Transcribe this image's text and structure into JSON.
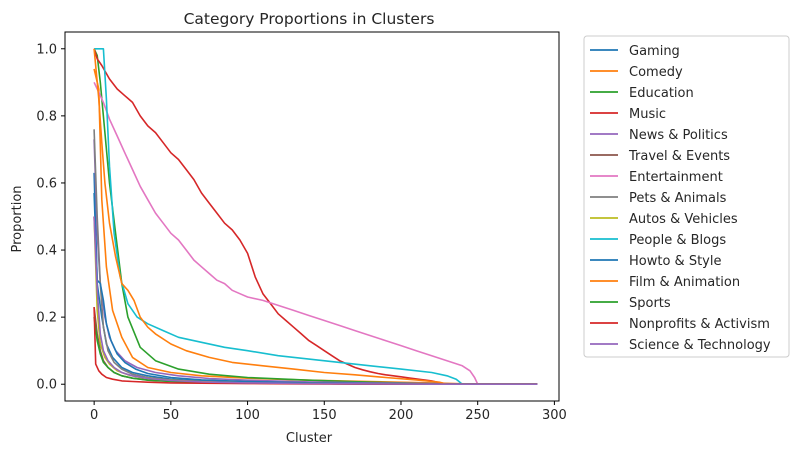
{
  "chart_data": {
    "type": "line",
    "title": "Category Proportions in Clusters",
    "xlabel": "Cluster",
    "ylabel": "Proportion",
    "xlim": [
      -19,
      303
    ],
    "ylim": [
      -0.05,
      1.05
    ],
    "xticks": [
      0,
      50,
      100,
      150,
      200,
      250,
      300
    ],
    "yticks": [
      0.0,
      0.2,
      0.4,
      0.6,
      0.8,
      1.0
    ],
    "grid": false,
    "legend_position": "outside-right",
    "series": [
      {
        "name": "Gaming",
        "color": "#1f77b4",
        "x": [
          0,
          2,
          5,
          8,
          12,
          18,
          25,
          35,
          50,
          70,
          100,
          140,
          180,
          220,
          250,
          289
        ],
        "y": [
          0.63,
          0.3,
          0.2,
          0.12,
          0.08,
          0.05,
          0.035,
          0.025,
          0.015,
          0.01,
          0.006,
          0.004,
          0.002,
          0.001,
          0.0,
          0.0
        ]
      },
      {
        "name": "Comedy",
        "color": "#ff7f0e",
        "x": [
          0,
          3,
          5,
          8,
          12,
          18,
          25,
          35,
          50,
          70,
          100,
          140,
          180,
          220,
          250,
          289
        ],
        "y": [
          0.94,
          0.88,
          0.55,
          0.35,
          0.22,
          0.14,
          0.08,
          0.05,
          0.035,
          0.025,
          0.018,
          0.012,
          0.008,
          0.004,
          0.0,
          0.0
        ]
      },
      {
        "name": "Education",
        "color": "#2ca02c",
        "x": [
          0,
          2,
          4,
          7,
          10,
          14,
          18,
          22,
          30,
          40,
          55,
          75,
          100,
          140,
          180,
          220,
          250,
          289
        ],
        "y": [
          1.0,
          0.98,
          0.9,
          0.75,
          0.6,
          0.45,
          0.3,
          0.2,
          0.11,
          0.07,
          0.045,
          0.03,
          0.02,
          0.012,
          0.006,
          0.002,
          0.0,
          0.0
        ]
      },
      {
        "name": "Music",
        "color": "#d62728",
        "x": [
          0,
          2,
          5,
          10,
          15,
          20,
          25,
          30,
          35,
          40,
          45,
          50,
          55,
          60,
          65,
          70,
          75,
          80,
          85,
          90,
          95,
          100,
          105,
          110,
          115,
          120,
          125,
          130,
          135,
          140,
          145,
          150,
          155,
          160,
          165,
          170,
          175,
          180,
          185,
          190,
          195,
          200,
          205,
          210,
          215,
          220,
          225,
          230,
          250,
          289
        ],
        "y": [
          1.0,
          0.97,
          0.95,
          0.91,
          0.88,
          0.86,
          0.84,
          0.8,
          0.77,
          0.75,
          0.72,
          0.69,
          0.67,
          0.64,
          0.61,
          0.57,
          0.54,
          0.51,
          0.48,
          0.46,
          0.43,
          0.39,
          0.32,
          0.27,
          0.24,
          0.21,
          0.19,
          0.17,
          0.15,
          0.13,
          0.115,
          0.1,
          0.085,
          0.07,
          0.06,
          0.05,
          0.043,
          0.037,
          0.032,
          0.028,
          0.025,
          0.022,
          0.019,
          0.016,
          0.013,
          0.01,
          0.005,
          0.0,
          0.0,
          0.0
        ]
      },
      {
        "name": "News & Politics",
        "color": "#9467bd",
        "x": [
          0,
          2,
          4,
          7,
          10,
          14,
          20,
          28,
          40,
          55,
          75,
          100,
          140,
          180,
          220,
          250,
          289
        ],
        "y": [
          0.73,
          0.45,
          0.3,
          0.2,
          0.14,
          0.1,
          0.07,
          0.05,
          0.035,
          0.025,
          0.017,
          0.012,
          0.007,
          0.004,
          0.002,
          0.0,
          0.0
        ]
      },
      {
        "name": "Travel & Events",
        "color": "#8c564b",
        "x": [
          0,
          2,
          4,
          6,
          9,
          13,
          18,
          25,
          35,
          50,
          70,
          100,
          140,
          180,
          220,
          250,
          289
        ],
        "y": [
          0.23,
          0.15,
          0.1,
          0.07,
          0.05,
          0.035,
          0.025,
          0.018,
          0.013,
          0.009,
          0.006,
          0.004,
          0.002,
          0.001,
          0.0,
          0.0,
          0.0
        ]
      },
      {
        "name": "Entertainment",
        "color": "#e377c2",
        "x": [
          0,
          3,
          6,
          10,
          15,
          20,
          25,
          30,
          35,
          40,
          45,
          50,
          55,
          60,
          65,
          70,
          75,
          80,
          85,
          90,
          95,
          100,
          110,
          120,
          130,
          140,
          150,
          160,
          170,
          180,
          190,
          200,
          210,
          220,
          230,
          240,
          245,
          248,
          250,
          289
        ],
        "y": [
          0.9,
          0.87,
          0.84,
          0.79,
          0.74,
          0.69,
          0.64,
          0.59,
          0.55,
          0.51,
          0.48,
          0.45,
          0.43,
          0.4,
          0.37,
          0.35,
          0.33,
          0.31,
          0.3,
          0.28,
          0.27,
          0.26,
          0.25,
          0.235,
          0.22,
          0.205,
          0.19,
          0.175,
          0.16,
          0.145,
          0.13,
          0.115,
          0.1,
          0.085,
          0.07,
          0.055,
          0.04,
          0.02,
          0.0,
          0.0
        ]
      },
      {
        "name": "Pets & Animals",
        "color": "#7f7f7f",
        "x": [
          0,
          2,
          4,
          6,
          9,
          13,
          18,
          25,
          35,
          50,
          70,
          100,
          140,
          180,
          220,
          250,
          289
        ],
        "y": [
          0.76,
          0.5,
          0.3,
          0.17,
          0.1,
          0.065,
          0.045,
          0.03,
          0.02,
          0.013,
          0.008,
          0.005,
          0.003,
          0.001,
          0.0,
          0.0,
          0.0
        ]
      },
      {
        "name": "Autos & Vehicles",
        "color": "#bcbd22",
        "x": [
          0,
          2,
          4,
          7,
          10,
          15,
          22,
          30,
          45,
          65,
          90,
          130,
          180,
          220,
          250,
          289
        ],
        "y": [
          0.5,
          0.22,
          0.12,
          0.08,
          0.06,
          0.04,
          0.028,
          0.02,
          0.013,
          0.008,
          0.005,
          0.003,
          0.001,
          0.0,
          0.0,
          0.0
        ]
      },
      {
        "name": "People & Blogs",
        "color": "#17becf",
        "x": [
          0,
          3,
          6,
          8,
          10,
          13,
          17,
          22,
          28,
          35,
          45,
          55,
          70,
          85,
          100,
          120,
          140,
          160,
          180,
          200,
          220,
          230,
          236,
          240,
          250,
          289
        ],
        "y": [
          1.0,
          1.0,
          1.0,
          0.85,
          0.65,
          0.45,
          0.32,
          0.24,
          0.2,
          0.18,
          0.16,
          0.14,
          0.125,
          0.11,
          0.1,
          0.085,
          0.075,
          0.065,
          0.055,
          0.045,
          0.035,
          0.025,
          0.015,
          0.0,
          0.0,
          0.0
        ]
      },
      {
        "name": "Howto & Style",
        "color": "#1f77b4",
        "x": [
          0,
          2,
          4,
          6,
          8,
          11,
          15,
          20,
          27,
          35,
          50,
          70,
          100,
          140,
          180,
          220,
          250,
          289
        ],
        "y": [
          0.57,
          0.31,
          0.3,
          0.25,
          0.18,
          0.13,
          0.09,
          0.065,
          0.045,
          0.032,
          0.02,
          0.013,
          0.008,
          0.004,
          0.002,
          0.0,
          0.0,
          0.0
        ]
      },
      {
        "name": "Film & Animation",
        "color": "#ff7f0e",
        "x": [
          0,
          3,
          5,
          7,
          10,
          14,
          18,
          22,
          26,
          30,
          35,
          40,
          50,
          60,
          75,
          90,
          110,
          130,
          150,
          170,
          190,
          210,
          225,
          230,
          250,
          289
        ],
        "y": [
          1.0,
          0.85,
          0.72,
          0.6,
          0.48,
          0.38,
          0.3,
          0.28,
          0.25,
          0.2,
          0.17,
          0.15,
          0.12,
          0.1,
          0.08,
          0.065,
          0.055,
          0.045,
          0.035,
          0.028,
          0.02,
          0.013,
          0.006,
          0.0,
          0.0,
          0.0
        ]
      },
      {
        "name": "Sports",
        "color": "#2ca02c",
        "x": [
          0,
          2,
          4,
          6,
          9,
          13,
          18,
          25,
          35,
          50,
          70,
          100,
          140,
          180,
          220,
          250,
          289
        ],
        "y": [
          0.2,
          0.13,
          0.09,
          0.065,
          0.05,
          0.035,
          0.025,
          0.018,
          0.012,
          0.008,
          0.005,
          0.003,
          0.002,
          0.001,
          0.0,
          0.0,
          0.0
        ]
      },
      {
        "name": "Nonprofits & Activism",
        "color": "#d62728",
        "x": [
          0,
          1,
          3,
          5,
          8,
          12,
          18,
          25,
          35,
          50,
          70,
          100,
          140,
          180,
          220,
          250,
          289
        ],
        "y": [
          0.23,
          0.06,
          0.04,
          0.03,
          0.02,
          0.015,
          0.01,
          0.008,
          0.006,
          0.004,
          0.003,
          0.002,
          0.001,
          0.0,
          0.0,
          0.0,
          0.0
        ]
      },
      {
        "name": "Science & Technology",
        "color": "#9467bd",
        "x": [
          0,
          2,
          4,
          6,
          9,
          13,
          18,
          25,
          35,
          50,
          70,
          100,
          140,
          180,
          220,
          250,
          289
        ],
        "y": [
          0.5,
          0.28,
          0.15,
          0.1,
          0.07,
          0.05,
          0.035,
          0.025,
          0.017,
          0.011,
          0.007,
          0.004,
          0.002,
          0.001,
          0.0,
          0.0,
          0.0
        ]
      }
    ]
  }
}
